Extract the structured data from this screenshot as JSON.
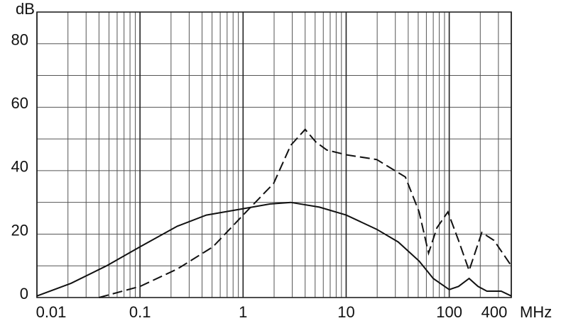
{
  "chart_data": {
    "type": "line",
    "y_label": "dB",
    "x_label": "MHz",
    "xlim": [
      0.01,
      400
    ],
    "xticks": [
      0.01,
      0.1,
      1,
      10,
      100,
      400
    ],
    "xscale": "log",
    "ylim": [
      0,
      90
    ],
    "yticks": [
      0,
      20,
      40,
      60,
      80
    ],
    "grid": true,
    "series": [
      {
        "color": "#111111",
        "dash": false,
        "x": [
          0.01,
          0.0214,
          0.0474,
          0.1,
          0.23,
          0.44,
          1,
          1.83,
          2.9,
          5.5,
          10,
          19.8,
          32,
          51,
          70,
          100,
          123,
          156,
          190,
          232,
          319,
          400
        ],
        "values": [
          0.5,
          4.5,
          10,
          16,
          22.5,
          26,
          28,
          29.5,
          30,
          28.5,
          26,
          21.5,
          17.5,
          11.5,
          6,
          2.5,
          3.5,
          6,
          3.5,
          2,
          2,
          0.5
        ]
      },
      {
        "color": "#111111",
        "dash": true,
        "x": [
          0.04,
          0.1,
          0.23,
          0.51,
          1,
          1.98,
          2.9,
          4.0,
          5.1,
          6.5,
          10,
          19.8,
          37.5,
          51,
          63,
          76,
          97,
          123,
          156,
          207,
          272,
          400
        ],
        "values": [
          0,
          3.5,
          9,
          16,
          26,
          36,
          48,
          53,
          49,
          46.5,
          45,
          43.5,
          38,
          27,
          14,
          22,
          27,
          18,
          8.5,
          20.5,
          18,
          10
        ]
      }
    ]
  }
}
